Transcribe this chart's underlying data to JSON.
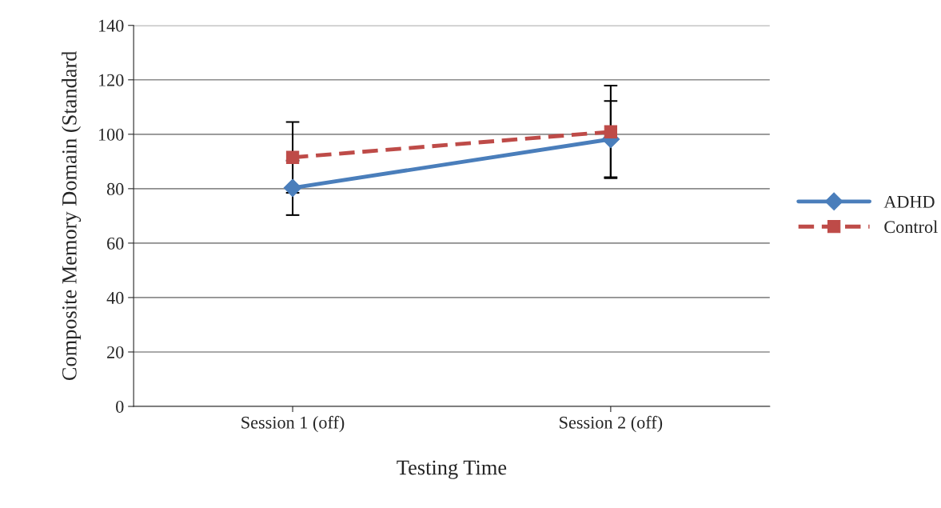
{
  "chart_data": {
    "type": "line",
    "xlabel": "Testing Time",
    "ylabel": "Composite Memory Domain (Standard",
    "categories": [
      "Session 1 (off)",
      "Session 2 (off)"
    ],
    "series": [
      {
        "name": "ADHD",
        "color": "#4a7ebb",
        "values": [
          80.3,
          98.2
        ],
        "errors": [
          10,
          14
        ],
        "marker": "diamond",
        "line_style": "solid"
      },
      {
        "name": "Control",
        "color": "#be4b48",
        "values": [
          91.5,
          100.9
        ],
        "errors": [
          13,
          17
        ],
        "marker": "square",
        "line_style": "dashed"
      }
    ],
    "ylim": [
      0,
      140
    ],
    "yticks": [
      0,
      20,
      40,
      60,
      80,
      100,
      120,
      140
    ],
    "grid": "y",
    "legend": "right"
  }
}
